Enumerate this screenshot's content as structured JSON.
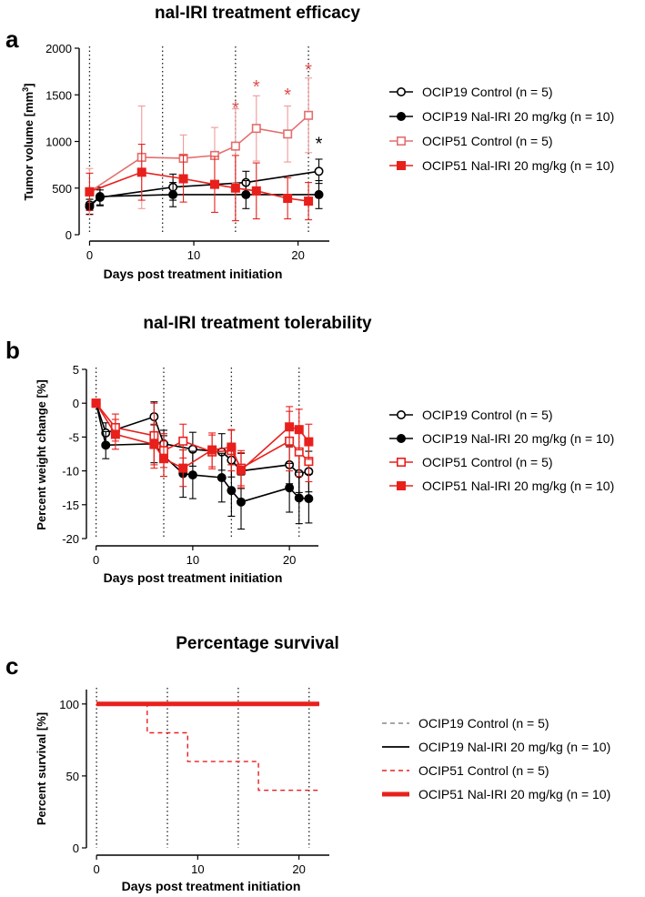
{
  "colors": {
    "black": "#000000",
    "red": "#e8201c",
    "pink": "#e46e6e",
    "pink_err": "#ef9a9a",
    "grey": "#888888",
    "dark_red": "#a52a2a",
    "star_red": "#e14c4c"
  },
  "chart_data": [
    {
      "id": "a",
      "type": "line",
      "panel_letter": "a",
      "title": "nal-IRI treatment efficacy",
      "xlabel": "Days post treatment initiation",
      "ylabel": "Tumor volume [mm3]",
      "ylabel_main": "Tumor volume [mm",
      "ylabel_sup": "3",
      "ylabel_end": "]",
      "xlim": [
        -1,
        23
      ],
      "ylim": [
        0,
        2000
      ],
      "xticks": [
        0,
        10,
        20
      ],
      "yticks": [
        0,
        500,
        1000,
        1500,
        2000
      ],
      "vlines": [
        0,
        7,
        14,
        21
      ],
      "series": [
        {
          "name": "OCIP19 Control (n = 5)",
          "style": "black_open",
          "x": [
            0,
            1,
            8,
            15,
            22
          ],
          "y": [
            320,
            400,
            510,
            560,
            680
          ],
          "err": [
            60,
            80,
            140,
            120,
            130
          ]
        },
        {
          "name": "OCIP19 Nal-IRI 20 mg/kg (n = 10)",
          "style": "black_filled",
          "x": [
            0,
            1,
            8,
            15,
            22
          ],
          "y": [
            300,
            410,
            430,
            430,
            430
          ],
          "err": [
            80,
            100,
            130,
            150,
            150
          ]
        },
        {
          "name": "OCIP51 Control (n = 5)",
          "style": "pink_open",
          "x": [
            0,
            5,
            9,
            12,
            14,
            16,
            19,
            21
          ],
          "y": [
            460,
            830,
            820,
            850,
            950,
            1140,
            1080,
            1280
          ],
          "err": [
            250,
            550,
            250,
            300,
            400,
            350,
            300,
            400
          ]
        },
        {
          "name": "OCIP51 Nal-IRI 20 mg/kg (n = 10)",
          "style": "red_filled",
          "x": [
            0,
            5,
            9,
            12,
            14,
            16,
            19,
            21
          ],
          "y": [
            460,
            670,
            600,
            540,
            500,
            470,
            390,
            360
          ],
          "err": [
            200,
            300,
            250,
            300,
            350,
            300,
            220,
            200
          ]
        }
      ],
      "annotations": [
        {
          "text": "*",
          "x": 14,
          "y": 1390,
          "color": "star_red"
        },
        {
          "text": "*",
          "x": 16,
          "y": 1620,
          "color": "star_red"
        },
        {
          "text": "*",
          "x": 19,
          "y": 1530,
          "color": "star_red"
        },
        {
          "text": "*",
          "x": 21,
          "y": 1800,
          "color": "star_red"
        },
        {
          "text": "*",
          "x": 22,
          "y": 1010,
          "color": "black"
        }
      ]
    },
    {
      "id": "b",
      "type": "line",
      "panel_letter": "b",
      "title": "nal-IRI treatment tolerability",
      "xlabel": "Days post treatment initiation",
      "ylabel": "Percent weight change [%]",
      "xlim": [
        -1,
        23
      ],
      "ylim": [
        -20,
        5
      ],
      "xticks": [
        0,
        10,
        20
      ],
      "yticks": [
        -20,
        -15,
        -10,
        -5,
        0,
        5
      ],
      "vlines": [
        0,
        7,
        14,
        21
      ],
      "series": [
        {
          "name": "OCIP19 Control (n = 5)",
          "style": "black_open",
          "x": [
            0,
            1,
            6,
            7,
            10,
            13,
            14,
            15,
            20,
            21,
            22
          ],
          "y": [
            0,
            -4.4,
            -2,
            -6,
            -6.8,
            -7.2,
            -8.4,
            -10,
            -9.1,
            -10.4,
            -10.1
          ],
          "err": [
            0,
            1.5,
            2.2,
            2,
            2.5,
            2.7,
            2.5,
            2.6,
            2.8,
            2.8,
            3
          ]
        },
        {
          "name": "OCIP19 Nal-IRI 20 mg/kg (n = 10)",
          "style": "black_filled",
          "x": [
            0,
            1,
            6,
            7,
            9,
            10,
            13,
            14,
            15,
            20,
            21,
            22
          ],
          "y": [
            0,
            -6.2,
            -6,
            -7.8,
            -10.4,
            -10.6,
            -11,
            -12.9,
            -14.6,
            -12.5,
            -14,
            -14.1
          ],
          "err": [
            0,
            2,
            2.8,
            3,
            3.5,
            3.5,
            3.6,
            3.8,
            4,
            3.6,
            3.8,
            3.6
          ]
        },
        {
          "name": "OCIP51 Control (n = 5)",
          "style": "red_open",
          "x": [
            0,
            2,
            6,
            7,
            9,
            12,
            14,
            15,
            20,
            21,
            22
          ],
          "y": [
            0,
            -3.6,
            -4.8,
            -7,
            -5.6,
            -7.2,
            -7,
            -9.6,
            -5.6,
            -7.2,
            -8.6
          ],
          "err": [
            0,
            2,
            4.8,
            2.5,
            2.5,
            2.5,
            3,
            2.6,
            4.4,
            3.6,
            3
          ]
        },
        {
          "name": "OCIP51 Nal-IRI 20 mg/kg (n = 10)",
          "style": "red_filled",
          "x": [
            0,
            2,
            6,
            7,
            9,
            12,
            14,
            15,
            20,
            21,
            22
          ],
          "y": [
            0,
            -4.6,
            -6.1,
            -8.2,
            -9.6,
            -6.9,
            -6.5,
            -9.9,
            -3.5,
            -3.9,
            -5.7
          ],
          "err": [
            0,
            2.2,
            3,
            2.6,
            2.7,
            2.5,
            2.6,
            2.6,
            3,
            3,
            2.6
          ]
        }
      ]
    },
    {
      "id": "c",
      "type": "line",
      "panel_letter": "c",
      "title": "Percentage survival",
      "xlabel": "Days post treatment initiation",
      "ylabel": "Percent survival [%]",
      "xlim": [
        -1,
        23
      ],
      "ylim": [
        0,
        110
      ],
      "xticks": [
        0,
        10,
        20
      ],
      "yticks": [
        0,
        50,
        100
      ],
      "vlines": [
        0,
        7,
        14,
        21
      ],
      "series": [
        {
          "name": "OCIP19 Control (n = 5)",
          "style": "grey_dash",
          "x": [
            0,
            22
          ],
          "y": [
            100,
            100
          ]
        },
        {
          "name": "OCIP19 Nal-IRI 20 mg/kg (n = 10)",
          "style": "black_line",
          "x": [
            0,
            22
          ],
          "y": [
            100,
            100
          ]
        },
        {
          "name": "OCIP51 Control (n = 5)",
          "style": "red_dash",
          "x": [
            0,
            5,
            5,
            9,
            9,
            16,
            16,
            22
          ],
          "y": [
            100,
            100,
            80,
            80,
            60,
            60,
            40,
            40
          ]
        },
        {
          "name": "OCIP51 Nal-IRI 20 mg/kg (n = 10)",
          "style": "red_thick",
          "x": [
            0,
            22
          ],
          "y": [
            100,
            100
          ]
        }
      ]
    }
  ]
}
